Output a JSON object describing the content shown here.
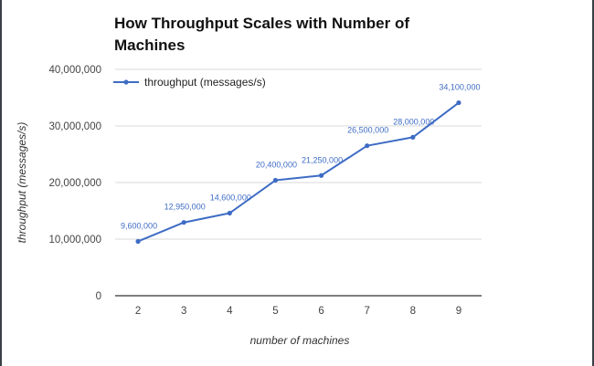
{
  "chart_data": {
    "type": "line",
    "title": "How Throughput Scales with Number of Machines",
    "title_lines": [
      "How Throughput Scales with Number of",
      "Machines"
    ],
    "xlabel": "number of machines",
    "ylabel": "throughput (messages/s)",
    "categories": [
      "2",
      "3",
      "4",
      "5",
      "6",
      "7",
      "8",
      "9"
    ],
    "ylim": [
      0,
      40000000
    ],
    "yticks": [
      0,
      10000000,
      20000000,
      30000000,
      40000000
    ],
    "ytick_labels": [
      "0",
      "10,000,000",
      "20,000,000",
      "30,000,000",
      "40,000,000"
    ],
    "grid": true,
    "legend_position": "top-left",
    "series": [
      {
        "name": "throughput (messages/s)",
        "color": "#3e6cc4",
        "values": [
          9600000,
          12950000,
          14600000,
          20400000,
          21250000,
          26500000,
          28000000,
          34100000
        ],
        "data_labels": [
          "9,600,000",
          "12,950,000",
          "14,600,000",
          "20,400,000",
          "21,250,000",
          "26,500,000",
          "28,000,000",
          "34,100,000"
        ]
      }
    ]
  }
}
